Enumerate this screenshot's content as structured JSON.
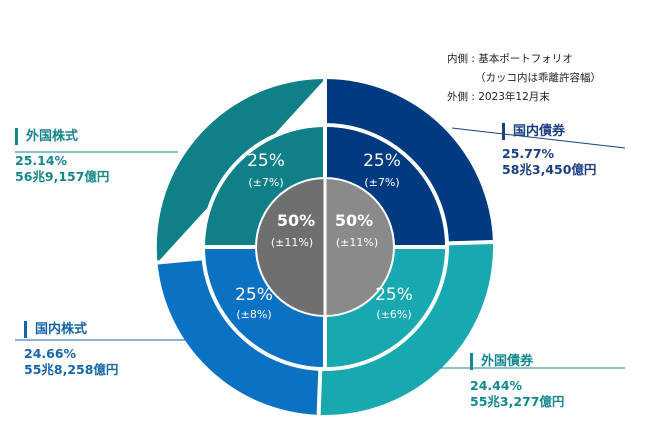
{
  "legend": {
    "inner_label": "内側 : 基本ポートフォリオ",
    "inner_sub": "（カッコ内は乖離許容幅）",
    "outer_label": "外側 : 2023年12月末"
  },
  "colors": {
    "domestic_bonds": "#003a80",
    "foreign_bonds": "#17a8b0",
    "domestic_stocks": "#0b71c3",
    "foreign_stocks": "#0f8088",
    "center_left": "#6f6f6f",
    "center_right": "#8a8a8a",
    "divider": "#ffffff"
  },
  "chart_data": {
    "type": "pie",
    "title": "",
    "center": {
      "left": {
        "value": "50%",
        "band": "(±11%)"
      },
      "right": {
        "value": "50%",
        "band": "(±11%)"
      }
    },
    "inner_ring": [
      {
        "asset": "国内債券",
        "value": "25%",
        "band": "(±7%)"
      },
      {
        "asset": "外国債券",
        "value": "25%",
        "band": "(±6%)"
      },
      {
        "asset": "国内株式",
        "value": "25%",
        "band": "(±8%)"
      },
      {
        "asset": "外国株式",
        "value": "25%",
        "band": "(±7%)"
      }
    ],
    "outer_ring": [
      {
        "asset": "国内債券",
        "pct": "25.77%",
        "amount": "58兆3,450億円"
      },
      {
        "asset": "外国債券",
        "pct": "24.44%",
        "amount": "55兆3,277億円"
      },
      {
        "asset": "国内株式",
        "pct": "24.66%",
        "amount": "55兆8,258億円"
      },
      {
        "asset": "外国株式",
        "pct": "25.14%",
        "amount": "56兆9,157億円"
      }
    ]
  }
}
